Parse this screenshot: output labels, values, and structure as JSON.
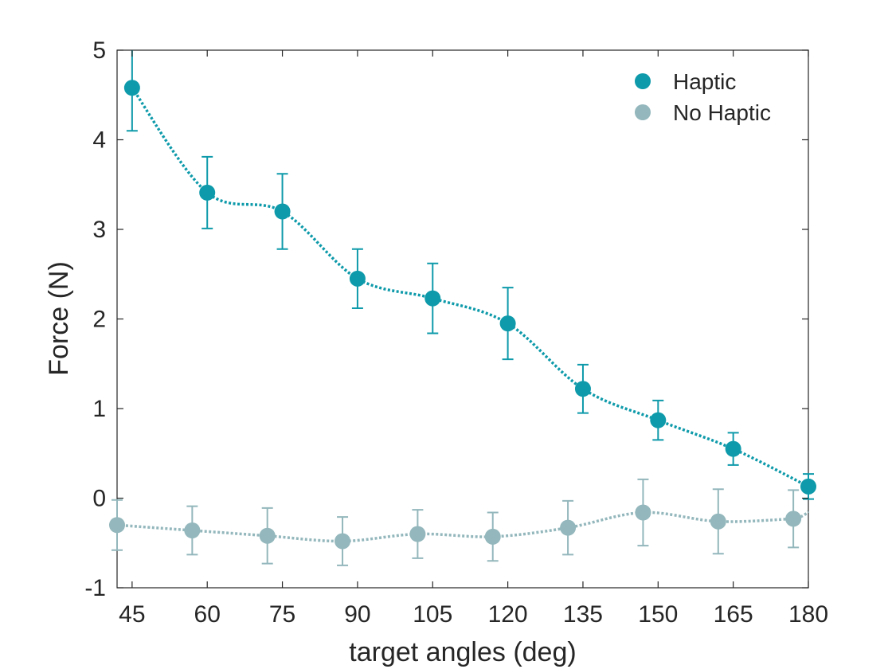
{
  "chart_data": {
    "type": "scatter",
    "title": "",
    "xlabel": "target angles (deg)",
    "ylabel": "Force (N)",
    "xlim": [
      42,
      180
    ],
    "ylim": [
      -1,
      5
    ],
    "xticks": [
      45,
      60,
      75,
      90,
      105,
      120,
      135,
      150,
      165,
      180
    ],
    "yticks": [
      -1,
      0,
      1,
      2,
      3,
      4,
      5
    ],
    "grid": false,
    "legend_position": "top-right",
    "series": [
      {
        "name": "Haptic",
        "color": "#0E9AAA",
        "x": [
          45,
          60,
          75,
          90,
          105,
          120,
          135,
          150,
          165,
          180
        ],
        "y": [
          4.58,
          3.41,
          3.2,
          2.45,
          2.23,
          1.95,
          1.22,
          0.87,
          0.55,
          0.13
        ],
        "err_low": [
          0.48,
          0.4,
          0.42,
          0.33,
          0.39,
          0.4,
          0.27,
          0.22,
          0.18,
          0.14
        ],
        "err_high": [
          0.48,
          0.4,
          0.42,
          0.33,
          0.39,
          0.4,
          0.27,
          0.22,
          0.18,
          0.14
        ]
      },
      {
        "name": "No Haptic",
        "color": "#93B7BC",
        "x": [
          42,
          57,
          72,
          87,
          102,
          117,
          132,
          147,
          162,
          177
        ],
        "y": [
          -0.3,
          -0.36,
          -0.42,
          -0.48,
          -0.4,
          -0.43,
          -0.33,
          -0.16,
          -0.26,
          -0.23
        ],
        "err_low": [
          0.28,
          0.27,
          0.31,
          0.27,
          0.27,
          0.27,
          0.3,
          0.37,
          0.36,
          0.32
        ],
        "err_high": [
          0.28,
          0.27,
          0.31,
          0.27,
          0.27,
          0.27,
          0.3,
          0.37,
          0.36,
          0.32
        ]
      }
    ]
  }
}
